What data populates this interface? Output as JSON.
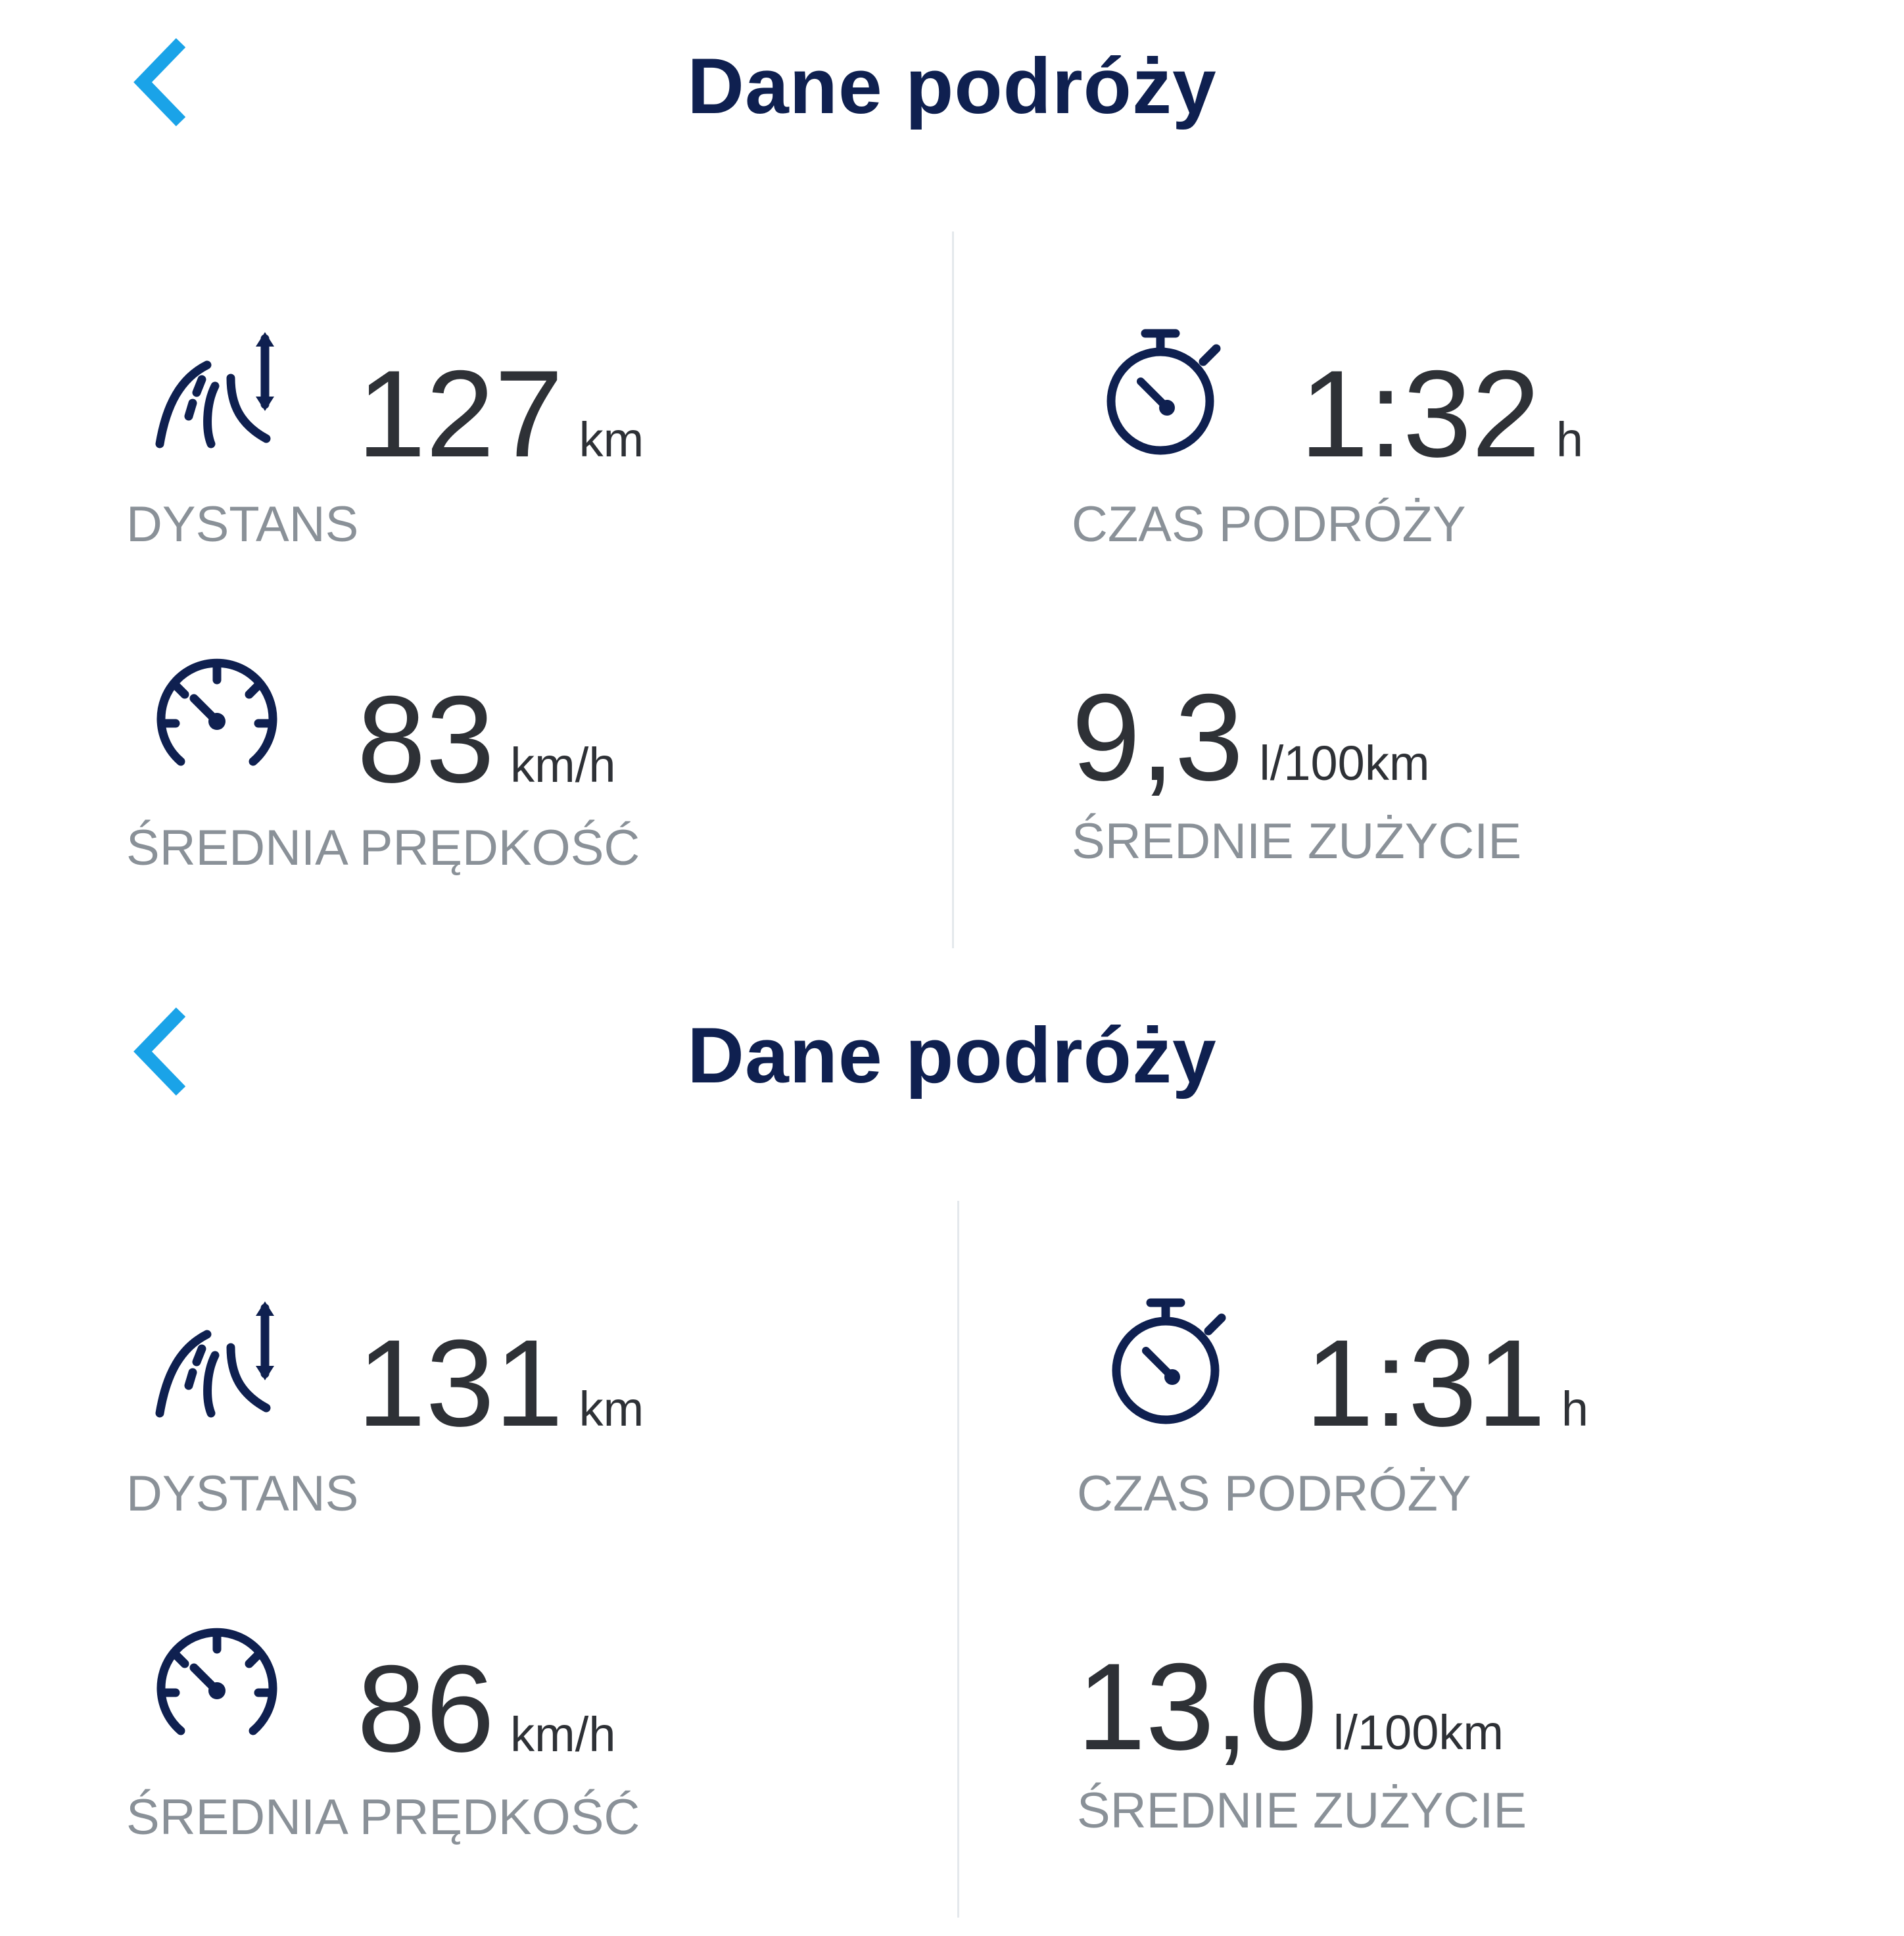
{
  "colors": {
    "accent": "#1aa3e8",
    "title": "#0f2050",
    "value": "#2e3136",
    "label": "#8a9198",
    "icon": "#0f2050"
  },
  "panels": [
    {
      "title": "Dane podróży",
      "distance": {
        "value": "127",
        "unit": "km",
        "label": "DYSTANS",
        "icon": "road-distance-icon"
      },
      "time": {
        "value": "1:32",
        "unit": "h",
        "label": "CZAS PODRÓŻY",
        "icon": "stopwatch-icon"
      },
      "speed": {
        "value": "83",
        "unit": "km/h",
        "label": "ŚREDNIA PRĘDKOŚĆ",
        "icon": "speedometer-icon"
      },
      "fuel": {
        "value": "9,3",
        "unit": "l/100km",
        "label": "ŚREDNIE ZUŻYCIE"
      }
    },
    {
      "title": "Dane podróży",
      "distance": {
        "value": "131",
        "unit": "km",
        "label": "DYSTANS",
        "icon": "road-distance-icon"
      },
      "time": {
        "value": "1:31",
        "unit": "h",
        "label": "CZAS PODRÓŻY",
        "icon": "stopwatch-icon"
      },
      "speed": {
        "value": "86",
        "unit": "km/h",
        "label": "ŚREDNIA PRĘDKOŚĆ",
        "icon": "speedometer-icon"
      },
      "fuel": {
        "value": "13,0",
        "unit": "l/100km",
        "label": "ŚREDNIE ZUŻYCIE"
      }
    }
  ]
}
